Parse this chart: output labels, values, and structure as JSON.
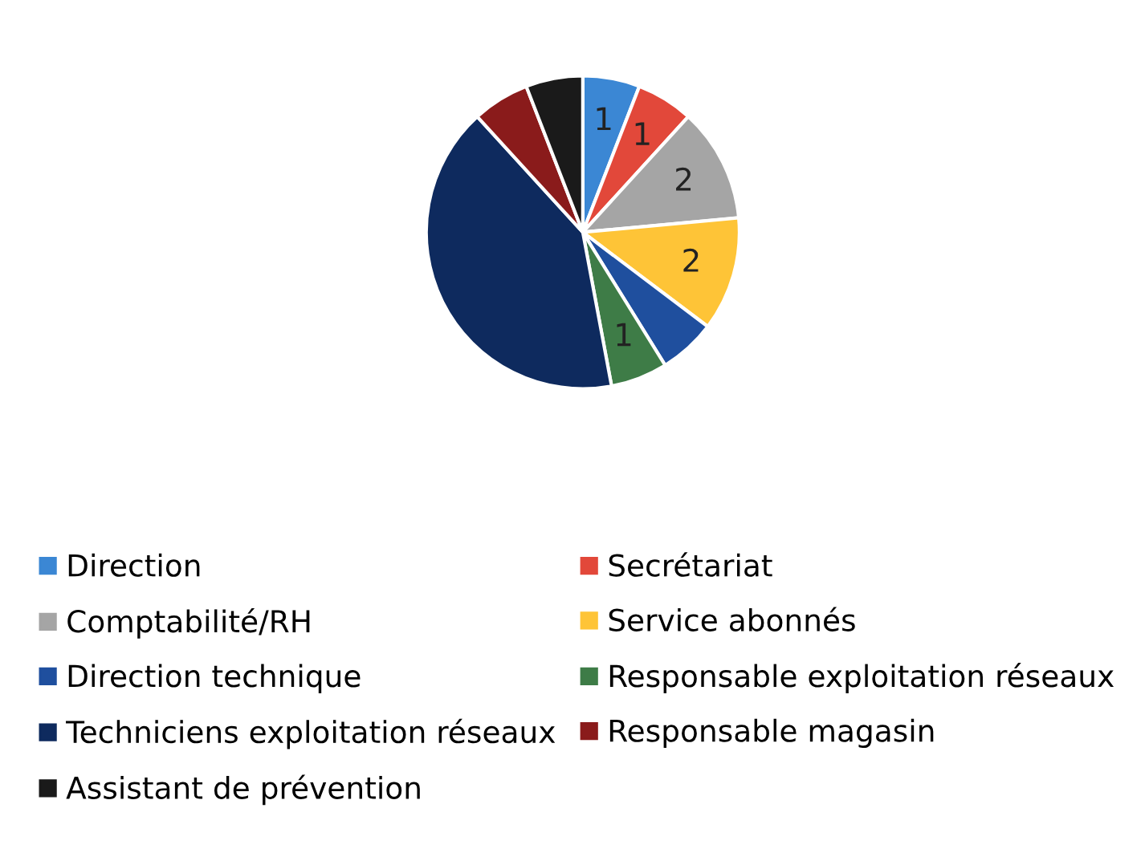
{
  "chart_data": {
    "type": "pie",
    "categories": [
      "Direction",
      "Secrétariat",
      "Comptabilité/RH",
      "Service abonnés",
      "Direction technique",
      "Responsable exploitation réseaux",
      "Techniciens exploitation réseaux",
      "Responsable magasin",
      "Assistant de prévention"
    ],
    "values": [
      1,
      1,
      2,
      2,
      1,
      1,
      7,
      1,
      1
    ],
    "value_labels": [
      "1",
      "1",
      "2",
      "2",
      null,
      "1",
      null,
      null,
      null
    ],
    "colors": [
      "#3b87d4",
      "#e2483a",
      "#a5a5a5",
      "#fec437",
      "#1f4f9e",
      "#3e7c47",
      "#0e2a5e",
      "#8a1b1b",
      "#1a1a1a"
    ],
    "legend": "bottom"
  }
}
